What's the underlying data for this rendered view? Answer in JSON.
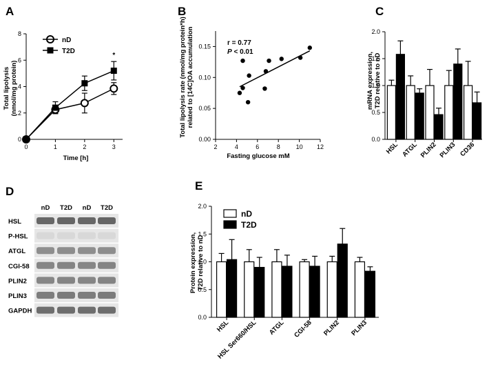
{
  "panels": {
    "A": {
      "letter": "A",
      "chart_data": {
        "type": "line",
        "x": [
          0,
          1,
          2,
          3
        ],
        "xticks": [
          "0",
          "1",
          "2",
          "3"
        ],
        "yticks": [
          "0",
          "2",
          "4",
          "6",
          "8"
        ],
        "xlim": [
          0,
          3.3
        ],
        "ylim": [
          0,
          8
        ],
        "xlabel": "Time [h]",
        "ylabel_lines": [
          "Total lipolysis",
          "(nmol/mg protein)"
        ],
        "series": [
          {
            "name": "nD",
            "values": [
              0,
              2.25,
              2.75,
              3.85
            ],
            "errors": [
              0,
              0.3,
              0.75,
              0.45
            ],
            "marker": "open-circle"
          },
          {
            "name": "T2D",
            "values": [
              0,
              2.4,
              4.25,
              5.2
            ],
            "errors": [
              0,
              0.45,
              0.55,
              0.7
            ],
            "marker": "filled-square"
          }
        ],
        "annotation": {
          "text": "*",
          "x": 3
        }
      }
    },
    "B": {
      "letter": "B",
      "chart_data": {
        "type": "scatter",
        "xticks": [
          "2",
          "4",
          "6",
          "8",
          "10",
          "12"
        ],
        "yticks": [
          "0.00",
          "0.05",
          "0.10",
          "0.15"
        ],
        "xlim": [
          2,
          12
        ],
        "ylim": [
          0,
          0.175
        ],
        "xlabel": "Fasting glucose mM",
        "ylabel_lines": [
          "Total lipolysis rate (nmol/mg protein*h)",
          "related to [14C]OA accumulation"
        ],
        "points": [
          {
            "x": 4.3,
            "y": 0.075
          },
          {
            "x": 4.6,
            "y": 0.127
          },
          {
            "x": 4.6,
            "y": 0.083
          },
          {
            "x": 5.2,
            "y": 0.103
          },
          {
            "x": 5.1,
            "y": 0.06
          },
          {
            "x": 6.7,
            "y": 0.082
          },
          {
            "x": 6.8,
            "y": 0.11
          },
          {
            "x": 7.1,
            "y": 0.127
          },
          {
            "x": 8.3,
            "y": 0.13
          },
          {
            "x": 10.1,
            "y": 0.132
          },
          {
            "x": 11.0,
            "y": 0.148
          }
        ],
        "fit": {
          "x": [
            4.3,
            11.0
          ],
          "y": [
            0.085,
            0.143
          ]
        },
        "stats": {
          "r": "r = 0.77",
          "p_label": "P",
          "p_value": " < 0.01"
        }
      }
    },
    "C": {
      "letter": "C",
      "chart_data": {
        "type": "bar",
        "categories": [
          "HSL",
          "ATGL",
          "PLIN2",
          "PLIN3",
          "CD36"
        ],
        "yticks": [
          "0.0",
          "0.5",
          "1.0",
          "1.5",
          "2.0"
        ],
        "ylim": [
          0,
          2.0
        ],
        "ylabel_lines": [
          "mRNA expression,",
          "T2D relative to nD"
        ],
        "series": [
          {
            "name": "nD",
            "values": [
              1.0,
              1.0,
              1.0,
              1.0,
              1.0
            ],
            "errors": [
              0.1,
              0.18,
              0.3,
              0.28,
              0.45
            ]
          },
          {
            "name": "T2D",
            "values": [
              1.58,
              0.86,
              0.46,
              1.4,
              0.68
            ],
            "errors": [
              0.25,
              0.08,
              0.12,
              0.28,
              0.2
            ]
          }
        ]
      }
    },
    "D": {
      "letter": "D",
      "lanes": [
        "nD",
        "T2D",
        "nD",
        "T2D"
      ],
      "rows": [
        {
          "label": "HSL",
          "intensity": 0.72
        },
        {
          "label": "P-HSL",
          "intensity": 0.08
        },
        {
          "label": "ATGL",
          "intensity": 0.5
        },
        {
          "label": "CGI-58",
          "intensity": 0.55
        },
        {
          "label": "PLIN2",
          "intensity": 0.55
        },
        {
          "label": "PLIN3",
          "intensity": 0.6
        },
        {
          "label": "GAPDH",
          "intensity": 0.68
        }
      ]
    },
    "E": {
      "letter": "E",
      "chart_data": {
        "type": "bar",
        "categories": [
          "HSL",
          "HSL Ser660/HSL",
          "ATGL",
          "CGI-58",
          "PLIN2",
          "PLIN3"
        ],
        "yticks": [
          "0.0",
          "0.5",
          "1.0",
          "1.5",
          "2.0"
        ],
        "ylim": [
          0,
          2.0
        ],
        "ylabel_lines": [
          "Protein expression,",
          "T2D relative to nD"
        ],
        "legend": [
          "nD",
          "T2D"
        ],
        "series": [
          {
            "name": "nD",
            "values": [
              1.0,
              1.0,
              1.0,
              1.0,
              1.0,
              1.0
            ],
            "errors": [
              0.15,
              0.22,
              0.22,
              0.04,
              0.1,
              0.08
            ]
          },
          {
            "name": "T2D",
            "values": [
              1.04,
              0.9,
              0.92,
              0.92,
              1.32,
              0.83
            ],
            "errors": [
              0.36,
              0.18,
              0.2,
              0.18,
              0.28,
              0.08
            ]
          }
        ]
      }
    }
  }
}
